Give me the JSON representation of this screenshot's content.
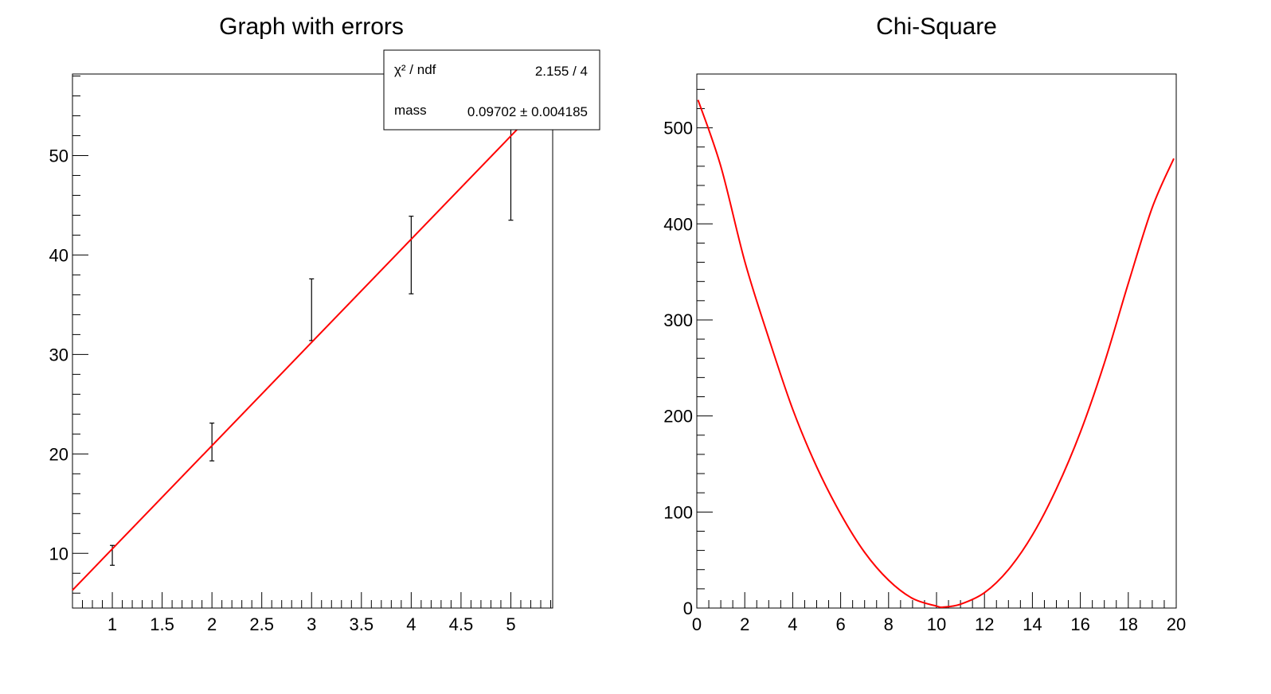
{
  "chart_data": [
    {
      "type": "scatter",
      "title": "Graph with errors",
      "xlabel": "",
      "ylabel": "",
      "xlim": [
        0.6,
        5.42
      ],
      "ylim": [
        4.5,
        58.2
      ],
      "x_ticks": [
        "1",
        "1.5",
        "2",
        "2.5",
        "3",
        "3.5",
        "4",
        "4.5",
        "5"
      ],
      "y_ticks": [
        "10",
        "20",
        "30",
        "40",
        "50"
      ],
      "grid": false,
      "series": [
        {
          "x": [
            1,
            2,
            3,
            4,
            5
          ],
          "y": [
            9.8,
            21.2,
            34.5,
            40.0,
            50.5
          ],
          "yerr": [
            1.0,
            1.9,
            3.1,
            3.9,
            7.0
          ]
        }
      ],
      "fit": {
        "color": "#ff0000",
        "x": [
          0.6,
          5.08
        ],
        "y": [
          6.3,
          52.8
        ]
      },
      "stats_box": {
        "rows": [
          {
            "label": "χ² / ndf",
            "value": "2.155 / 4"
          },
          {
            "label": "mass",
            "value": "0.09702 ± 0.004185"
          }
        ]
      }
    },
    {
      "type": "line",
      "title": "Chi-Square",
      "xlabel": "",
      "ylabel": "",
      "xlim": [
        0,
        20
      ],
      "ylim": [
        0,
        556
      ],
      "x_ticks": [
        "0",
        "2",
        "4",
        "6",
        "8",
        "10",
        "12",
        "14",
        "16",
        "18",
        "20"
      ],
      "y_ticks": [
        "0",
        "100",
        "200",
        "300",
        "400",
        "500"
      ],
      "grid": false,
      "series": [
        {
          "color": "#ff0000",
          "x": [
            0.05,
            1,
            2,
            3,
            4,
            5,
            6,
            7,
            8,
            9,
            10,
            10.3,
            11,
            12,
            13,
            14,
            15,
            16,
            17,
            18,
            19,
            19.9
          ],
          "y": [
            529,
            460,
            361,
            281,
            207,
            147,
            98,
            58,
            29,
            10,
            2,
            1,
            4,
            16,
            40,
            76,
            124,
            183,
            255,
            338,
            417,
            468
          ]
        }
      ]
    }
  ]
}
